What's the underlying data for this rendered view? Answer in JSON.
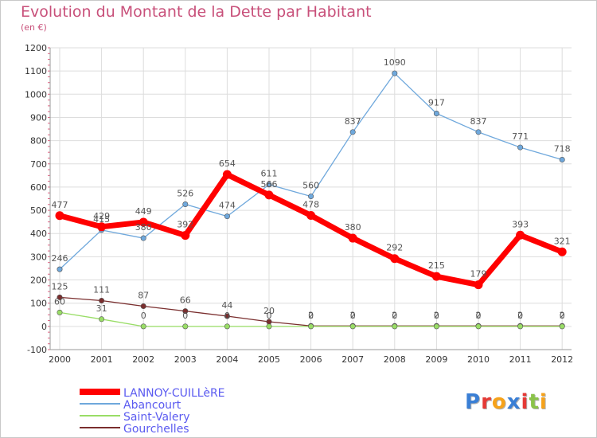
{
  "header": {
    "title": "Evolution du Montant de la Dette par Habitant",
    "subtitle": "(en €)"
  },
  "logo": {
    "text": "Proxiti"
  },
  "colors": {
    "title": "#c8507a",
    "legend_text": "#5b5bf0",
    "grid": "#dddddd",
    "axis_tick": "#e06080"
  },
  "chart_data": {
    "type": "line",
    "title": "Evolution du Montant de la Dette par Habitant",
    "subtitle": "(en €)",
    "xlabel": "",
    "ylabel": "",
    "x": [
      "2000",
      "2001",
      "2002",
      "2003",
      "2004",
      "2005",
      "2006",
      "2007",
      "2008",
      "2009",
      "2010",
      "2011",
      "2012"
    ],
    "ylim": [
      -100,
      1200
    ],
    "yticks": [
      "-100",
      "0",
      "100",
      "200",
      "300",
      "400",
      "500",
      "600",
      "700",
      "800",
      "900",
      "1000",
      "1100",
      "1200"
    ],
    "grid": true,
    "legend_position": "bottom-left",
    "series": [
      {
        "name": "LANNOY-CUILLèRE",
        "color": "#ff0000",
        "width": 7,
        "values": [
          477,
          429,
          449,
          392,
          654,
          566,
          478,
          380,
          292,
          215,
          179,
          393,
          321
        ],
        "labels": [
          "477",
          "429",
          "449",
          "392",
          "654",
          "566",
          "478",
          "380",
          "292",
          "215",
          "179",
          "393",
          "321"
        ]
      },
      {
        "name": "Abancourt",
        "color": "#6fa8dc",
        "width": 1.3,
        "values": [
          246,
          415,
          380,
          526,
          474,
          611,
          560,
          837,
          1090,
          917,
          837,
          771,
          718
        ],
        "labels": [
          "246",
          "415",
          "380",
          "526",
          "474",
          "611",
          "560",
          "837",
          "1090",
          "917",
          "837",
          "771",
          "718"
        ]
      },
      {
        "name": "Saint-Valery",
        "color": "#99dd66",
        "width": 1.3,
        "values": [
          60,
          31,
          0,
          0,
          0,
          0,
          0,
          0,
          0,
          0,
          0,
          0,
          0
        ],
        "labels": [
          "60",
          "31",
          "0",
          "0",
          "0",
          "0",
          "0",
          "0",
          "0",
          "0",
          "0",
          "0",
          "0"
        ]
      },
      {
        "name": "Gourchelles",
        "color": "#7a2e2e",
        "width": 1.3,
        "values": [
          125,
          111,
          87,
          66,
          44,
          20,
          2,
          2,
          2,
          2,
          2,
          2,
          2
        ],
        "labels": [
          "125",
          "111",
          "87",
          "66",
          "44",
          "20",
          "2",
          "2",
          "2",
          "2",
          "2",
          "2",
          "2"
        ]
      }
    ]
  }
}
